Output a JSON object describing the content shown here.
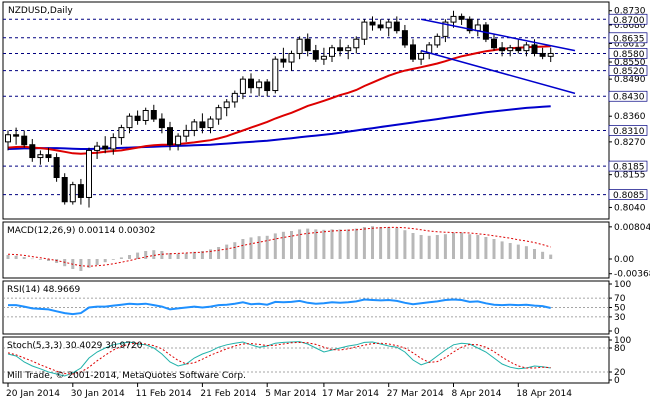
{
  "chart_data": {
    "type": "candlestick",
    "symbol": "NZDUSD",
    "timeframe": "Daily",
    "title": "NZDUSD,Daily",
    "copyright": "Mill Trade, © 2001-2014, MetaQuotes Software Corp.",
    "x_dates": [
      "20 Jan 2014",
      "30 Jan 2014",
      "11 Feb 2014",
      "21 Feb 2014",
      "5 Mar 2014",
      "17 Mar 2014",
      "27 Mar 2014",
      "8 Apr 2014",
      "18 Apr 2014"
    ],
    "price_ticks": [
      "0.8730",
      "0.8680",
      "0.8615",
      "0.8550",
      "0.8490",
      "0.8425",
      "0.8360",
      "0.8270",
      "0.8155",
      "0.8040"
    ],
    "price_ylim": [
      0.801,
      0.875
    ],
    "levels": [
      {
        "label": "0.8700",
        "value": 0.87
      },
      {
        "label": "0.8635",
        "value": 0.8635
      },
      {
        "label": "0.8580",
        "value": 0.858
      },
      {
        "label": "0.8520",
        "value": 0.852
      },
      {
        "label": "0.8430",
        "value": 0.843
      },
      {
        "label": "0.8310",
        "value": 0.831
      },
      {
        "label": "0.8185",
        "value": 0.8185
      },
      {
        "label": "0.8085",
        "value": 0.8085
      }
    ],
    "candles": [
      [
        0.827,
        0.831,
        0.824,
        0.8295
      ],
      [
        0.8295,
        0.832,
        0.826,
        0.829
      ],
      [
        0.829,
        0.831,
        0.825,
        0.826
      ],
      [
        0.826,
        0.828,
        0.82,
        0.8215
      ],
      [
        0.8215,
        0.824,
        0.819,
        0.8225
      ],
      [
        0.8225,
        0.825,
        0.82,
        0.8215
      ],
      [
        0.8215,
        0.823,
        0.813,
        0.8145
      ],
      [
        0.8145,
        0.816,
        0.805,
        0.806
      ],
      [
        0.806,
        0.813,
        0.805,
        0.812
      ],
      [
        0.812,
        0.814,
        0.805,
        0.8075
      ],
      [
        0.8075,
        0.825,
        0.804,
        0.824
      ],
      [
        0.824,
        0.827,
        0.821,
        0.8255
      ],
      [
        0.8255,
        0.829,
        0.823,
        0.8245
      ],
      [
        0.8245,
        0.83,
        0.8225,
        0.8285
      ],
      [
        0.8285,
        0.833,
        0.826,
        0.832
      ],
      [
        0.832,
        0.837,
        0.83,
        0.836
      ],
      [
        0.836,
        0.838,
        0.833,
        0.8345
      ],
      [
        0.8345,
        0.839,
        0.833,
        0.838
      ],
      [
        0.838,
        0.84,
        0.834,
        0.835
      ],
      [
        0.835,
        0.837,
        0.83,
        0.832
      ],
      [
        0.832,
        0.834,
        0.824,
        0.826
      ],
      [
        0.826,
        0.83,
        0.824,
        0.829
      ],
      [
        0.829,
        0.833,
        0.827,
        0.831
      ],
      [
        0.831,
        0.835,
        0.829,
        0.834
      ],
      [
        0.834,
        0.837,
        0.83,
        0.832
      ],
      [
        0.832,
        0.836,
        0.83,
        0.835
      ],
      [
        0.835,
        0.84,
        0.833,
        0.839
      ],
      [
        0.839,
        0.842,
        0.836,
        0.841
      ],
      [
        0.841,
        0.845,
        0.839,
        0.844
      ],
      [
        0.844,
        0.85,
        0.842,
        0.849
      ],
      [
        0.849,
        0.851,
        0.844,
        0.846
      ],
      [
        0.846,
        0.849,
        0.843,
        0.848
      ],
      [
        0.848,
        0.849,
        0.843,
        0.845
      ],
      [
        0.845,
        0.857,
        0.844,
        0.856
      ],
      [
        0.856,
        0.86,
        0.853,
        0.855
      ],
      [
        0.855,
        0.859,
        0.852,
        0.858
      ],
      [
        0.858,
        0.864,
        0.856,
        0.863
      ],
      [
        0.863,
        0.865,
        0.857,
        0.859
      ],
      [
        0.859,
        0.861,
        0.855,
        0.856
      ],
      [
        0.856,
        0.86,
        0.854,
        0.857
      ],
      [
        0.857,
        0.861,
        0.855,
        0.86
      ],
      [
        0.86,
        0.863,
        0.857,
        0.859
      ],
      [
        0.859,
        0.861,
        0.856,
        0.86
      ],
      [
        0.86,
        0.864,
        0.858,
        0.863
      ],
      [
        0.863,
        0.87,
        0.861,
        0.869
      ],
      [
        0.869,
        0.871,
        0.866,
        0.868
      ],
      [
        0.868,
        0.87,
        0.866,
        0.867
      ],
      [
        0.867,
        0.87,
        0.864,
        0.869
      ],
      [
        0.869,
        0.871,
        0.865,
        0.866
      ],
      [
        0.866,
        0.868,
        0.86,
        0.861
      ],
      [
        0.861,
        0.863,
        0.855,
        0.856
      ],
      [
        0.856,
        0.859,
        0.854,
        0.858
      ],
      [
        0.858,
        0.862,
        0.856,
        0.861
      ],
      [
        0.861,
        0.865,
        0.86,
        0.864
      ],
      [
        0.864,
        0.87,
        0.862,
        0.869
      ],
      [
        0.869,
        0.873,
        0.867,
        0.871
      ],
      [
        0.871,
        0.872,
        0.868,
        0.87
      ],
      [
        0.87,
        0.871,
        0.865,
        0.866
      ],
      [
        0.866,
        0.87,
        0.864,
        0.868
      ],
      [
        0.868,
        0.869,
        0.862,
        0.863
      ],
      [
        0.863,
        0.865,
        0.859,
        0.86
      ],
      [
        0.86,
        0.862,
        0.857,
        0.859
      ],
      [
        0.859,
        0.861,
        0.857,
        0.86
      ],
      [
        0.86,
        0.863,
        0.858,
        0.859
      ],
      [
        0.859,
        0.862,
        0.857,
        0.861
      ],
      [
        0.861,
        0.863,
        0.857,
        0.858
      ],
      [
        0.858,
        0.86,
        0.856,
        0.857
      ],
      [
        0.857,
        0.86,
        0.855,
        0.858
      ]
    ],
    "ma_red": [
      0.825,
      0.8252,
      0.8253,
      0.825,
      0.8248,
      0.8245,
      0.824,
      0.8235,
      0.823,
      0.8228,
      0.823,
      0.8232,
      0.8235,
      0.8238,
      0.824,
      0.8245,
      0.825,
      0.8255,
      0.8258,
      0.826,
      0.826,
      0.8262,
      0.8265,
      0.8268,
      0.8272,
      0.8276,
      0.8282,
      0.829,
      0.83,
      0.831,
      0.832,
      0.833,
      0.834,
      0.8352,
      0.8362,
      0.8372,
      0.8384,
      0.8396,
      0.8405,
      0.8414,
      0.8424,
      0.8434,
      0.8442,
      0.8452,
      0.8466,
      0.8478,
      0.849,
      0.8502,
      0.8512,
      0.852,
      0.8526,
      0.8532,
      0.8538,
      0.8545,
      0.8553,
      0.8562,
      0.857,
      0.8576,
      0.8582,
      0.8588,
      0.8592,
      0.8596,
      0.8598,
      0.86,
      0.8602,
      0.8603,
      0.8604,
      0.8605
    ],
    "ma_blue": [
      0.8245,
      0.8246,
      0.8247,
      0.8247,
      0.8248,
      0.8248,
      0.8248,
      0.8247,
      0.8246,
      0.8245,
      0.8245,
      0.8246,
      0.8247,
      0.8248,
      0.8249,
      0.825,
      0.8251,
      0.8252,
      0.8253,
      0.8254,
      0.8255,
      0.8256,
      0.8257,
      0.8258,
      0.8259,
      0.826,
      0.8262,
      0.8264,
      0.8266,
      0.8268,
      0.827,
      0.8272,
      0.8274,
      0.8277,
      0.828,
      0.8283,
      0.8286,
      0.8289,
      0.8292,
      0.8295,
      0.8298,
      0.8302,
      0.8306,
      0.831,
      0.8314,
      0.8318,
      0.8322,
      0.8326,
      0.833,
      0.8334,
      0.8338,
      0.8342,
      0.8346,
      0.835,
      0.8354,
      0.8358,
      0.8362,
      0.8366,
      0.837,
      0.8374,
      0.8377,
      0.838,
      0.8383,
      0.8386,
      0.8389,
      0.8391,
      0.8393,
      0.8395
    ],
    "trendlines": [
      {
        "from": [
          51,
          0.87
        ],
        "to": [
          70,
          0.859
        ]
      },
      {
        "from": [
          51,
          0.859
        ],
        "to": [
          70,
          0.844
        ]
      }
    ],
    "macd": {
      "label": "MACD(12,26,9) 0.00114 0.00302",
      "ticks": [
        "0.00804",
        "0.00",
        "-0.00368"
      ],
      "ylim": [
        -0.004,
        0.0085
      ],
      "histogram": [
        0.001,
        0.0008,
        0.0005,
        0.0001,
        -0.0002,
        -0.0005,
        -0.001,
        -0.0018,
        -0.0025,
        -0.003,
        -0.0022,
        -0.0015,
        -0.0008,
        -0.0002,
        0.0004,
        0.001,
        0.0016,
        0.002,
        0.0022,
        0.002,
        0.0015,
        0.0013,
        0.0014,
        0.0018,
        0.002,
        0.0024,
        0.003,
        0.0036,
        0.0042,
        0.005,
        0.0054,
        0.0057,
        0.0058,
        0.0064,
        0.0068,
        0.007,
        0.0074,
        0.0076,
        0.0074,
        0.0073,
        0.0074,
        0.0074,
        0.0074,
        0.0076,
        0.008,
        0.0082,
        0.008,
        0.008,
        0.0078,
        0.0072,
        0.0065,
        0.006,
        0.0058,
        0.006,
        0.0062,
        0.0066,
        0.0066,
        0.0062,
        0.006,
        0.0055,
        0.005,
        0.0044,
        0.004,
        0.0036,
        0.0032,
        0.0025,
        0.0018,
        0.0011
      ],
      "signal": [
        0.0012,
        0.0011,
        0.0009,
        0.0006,
        0.0003,
        0.0,
        -0.0004,
        -0.0008,
        -0.0013,
        -0.0017,
        -0.0018,
        -0.0017,
        -0.0015,
        -0.0012,
        -0.0008,
        -0.0004,
        0.0001,
        0.0005,
        0.0009,
        0.0012,
        0.0013,
        0.0014,
        0.0015,
        0.0016,
        0.0017,
        0.0019,
        0.0022,
        0.0025,
        0.0029,
        0.0034,
        0.0038,
        0.0042,
        0.0046,
        0.005,
        0.0054,
        0.0057,
        0.0061,
        0.0064,
        0.0066,
        0.0068,
        0.007,
        0.0071,
        0.0072,
        0.0073,
        0.0075,
        0.0077,
        0.0078,
        0.0079,
        0.0079,
        0.0078,
        0.0076,
        0.0073,
        0.007,
        0.0068,
        0.0067,
        0.0066,
        0.0066,
        0.0065,
        0.0063,
        0.0061,
        0.0058,
        0.0055,
        0.0052,
        0.0048,
        0.0045,
        0.0041,
        0.0036,
        0.003
      ]
    },
    "rsi": {
      "label": "RSI(14) 48.9669",
      "ticks": [
        "100",
        "70",
        "50",
        "30",
        "0"
      ],
      "ylim": [
        0,
        100
      ],
      "levels": [
        70,
        50,
        30
      ],
      "values": [
        55,
        55,
        52,
        48,
        47,
        46,
        42,
        38,
        36,
        38,
        50,
        52,
        52,
        54,
        56,
        58,
        57,
        58,
        55,
        52,
        46,
        48,
        50,
        52,
        50,
        52,
        55,
        56,
        58,
        61,
        57,
        58,
        56,
        62,
        61,
        62,
        64,
        60,
        58,
        59,
        61,
        60,
        61,
        63,
        67,
        66,
        65,
        66,
        64,
        60,
        57,
        59,
        61,
        63,
        66,
        67,
        66,
        62,
        63,
        59,
        56,
        55,
        56,
        55,
        56,
        54,
        53,
        49
      ]
    },
    "stoch": {
      "label": "Stoch(5,3,3) 30.4029 30.9720",
      "ticks": [
        "100",
        "80",
        "20",
        "0"
      ],
      "ylim": [
        0,
        100
      ],
      "levels": [
        80,
        20
      ],
      "main": [
        65,
        60,
        45,
        35,
        28,
        20,
        15,
        10,
        18,
        30,
        55,
        70,
        80,
        88,
        92,
        95,
        90,
        88,
        80,
        65,
        45,
        35,
        40,
        55,
        65,
        72,
        82,
        88,
        92,
        95,
        88,
        82,
        85,
        92,
        94,
        95,
        96,
        90,
        80,
        70,
        75,
        80,
        85,
        88,
        94,
        95,
        90,
        85,
        82,
        70,
        50,
        38,
        45,
        60,
        75,
        88,
        92,
        90,
        80,
        70,
        55,
        40,
        32,
        28,
        30,
        35,
        33,
        30
      ],
      "signal": [
        68,
        63,
        55,
        47,
        38,
        30,
        22,
        16,
        15,
        20,
        32,
        48,
        62,
        75,
        84,
        90,
        92,
        90,
        86,
        78,
        63,
        49,
        40,
        43,
        52,
        62,
        70,
        78,
        85,
        90,
        91,
        89,
        86,
        87,
        90,
        93,
        94,
        93,
        89,
        82,
        76,
        75,
        78,
        83,
        87,
        91,
        92,
        90,
        86,
        80,
        68,
        54,
        44,
        46,
        56,
        70,
        82,
        89,
        88,
        82,
        71,
        57,
        45,
        35,
        30,
        30,
        32,
        31
      ]
    }
  }
}
